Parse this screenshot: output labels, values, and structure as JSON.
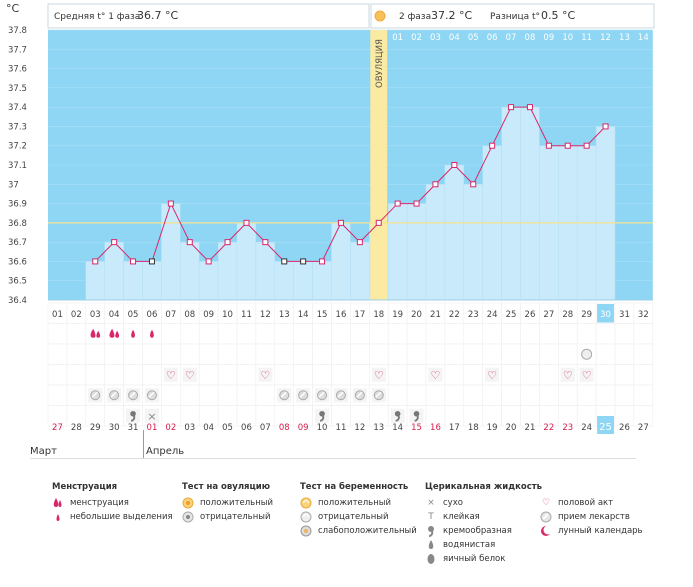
{
  "header": {
    "unit": "°C",
    "phase1": "Средняя t° 1 фаза",
    "phase1_value": "36.7 °C",
    "phase2": "2 фаза",
    "phase2_value": "37.2 °C",
    "difference": "Разница t°",
    "difference_value": "0.5 °C"
  },
  "ovulation_label": "ОВУЛЯЦИЯ",
  "chart_data": {
    "type": "line",
    "ylabel": "°C",
    "ylim": [
      36.4,
      37.8
    ],
    "yticks": [
      "37.8",
      "37.7",
      "37.6",
      "37.5",
      "37.4",
      "37.3",
      "37.2",
      "37.1",
      "37",
      "36.9",
      "36.8",
      "36.7",
      "36.6",
      "36.5",
      "36.4"
    ],
    "coverline": 36.8,
    "ovulation_day": 18,
    "cycle_days": [
      "01",
      "02",
      "03",
      "04",
      "05",
      "06",
      "07",
      "08",
      "09",
      "10",
      "11",
      "12",
      "13",
      "14",
      "15",
      "16",
      "17",
      "18",
      "19",
      "20",
      "21",
      "22",
      "23",
      "24",
      "25",
      "26",
      "27",
      "28",
      "29",
      "30",
      "31",
      "32"
    ],
    "current_day": "30",
    "phase2_days": [
      "01",
      "02",
      "03",
      "04",
      "05",
      "06",
      "07",
      "08",
      "09",
      "10",
      "11",
      "12",
      "13",
      "14"
    ],
    "temperatures": [
      null,
      null,
      36.6,
      36.7,
      36.6,
      36.6,
      36.9,
      36.7,
      36.6,
      36.7,
      36.8,
      36.7,
      36.6,
      36.6,
      36.6,
      36.8,
      36.7,
      36.8,
      36.9,
      36.9,
      37.0,
      37.1,
      37.0,
      37.2,
      37.4,
      37.4,
      37.2,
      37.2,
      37.2,
      37.3,
      null,
      null
    ],
    "calendar_dates": [
      "27",
      "28",
      "29",
      "30",
      "31",
      "01",
      "02",
      "03",
      "04",
      "05",
      "06",
      "07",
      "08",
      "09",
      "10",
      "11",
      "12",
      "13",
      "14",
      "15",
      "16",
      "17",
      "18",
      "19",
      "20",
      "21",
      "22",
      "23",
      "24",
      "25",
      "26",
      "27"
    ],
    "weekend_dates": [
      1,
      6,
      7,
      13,
      14,
      20,
      21,
      27,
      28
    ],
    "today_date": "25"
  },
  "months": {
    "first": "Март",
    "second": "Апрель"
  },
  "rows": {
    "menstruation": {
      "big": [
        3,
        4
      ],
      "small": [
        5,
        6
      ]
    },
    "ovulation_test": {
      "negative_spot": [
        29
      ]
    },
    "intercourse": [
      7,
      8,
      12,
      18,
      21,
      24,
      28,
      29
    ],
    "medication": [
      3,
      4,
      5,
      6,
      13,
      14,
      15,
      16,
      17,
      18
    ],
    "cervical": {
      "creamy": [
        5,
        15,
        19,
        20
      ],
      "dry": [
        6
      ]
    }
  },
  "legend": {
    "menstruation": {
      "title": "Менструация",
      "items": [
        "менструация",
        "небольшие выделения"
      ]
    },
    "ovulation_test": {
      "title": "Тест на овуляцию",
      "items": [
        "положительный",
        "отрицательный"
      ]
    },
    "pregnancy_test": {
      "title": "Тест на беременность",
      "items": [
        "положительный",
        "отрицательный",
        "слабоположительный"
      ]
    },
    "cervical_fluid": {
      "title": "Церикальная жидкость",
      "items": [
        "сухо",
        "клейкая",
        "кремообразная",
        "водянистая",
        "яичный белок"
      ]
    },
    "other": {
      "items": [
        "половой акт",
        "прием лекарств",
        "лунный календарь"
      ]
    }
  },
  "colors": {
    "sky": "#8ed6f4",
    "bar": "#c9eafb",
    "line": "#d8276a",
    "ovulation": "#fbeaa1",
    "coverline": "#f7e38e",
    "weekend": "#d81b4a",
    "today": "#8ed6f4"
  }
}
